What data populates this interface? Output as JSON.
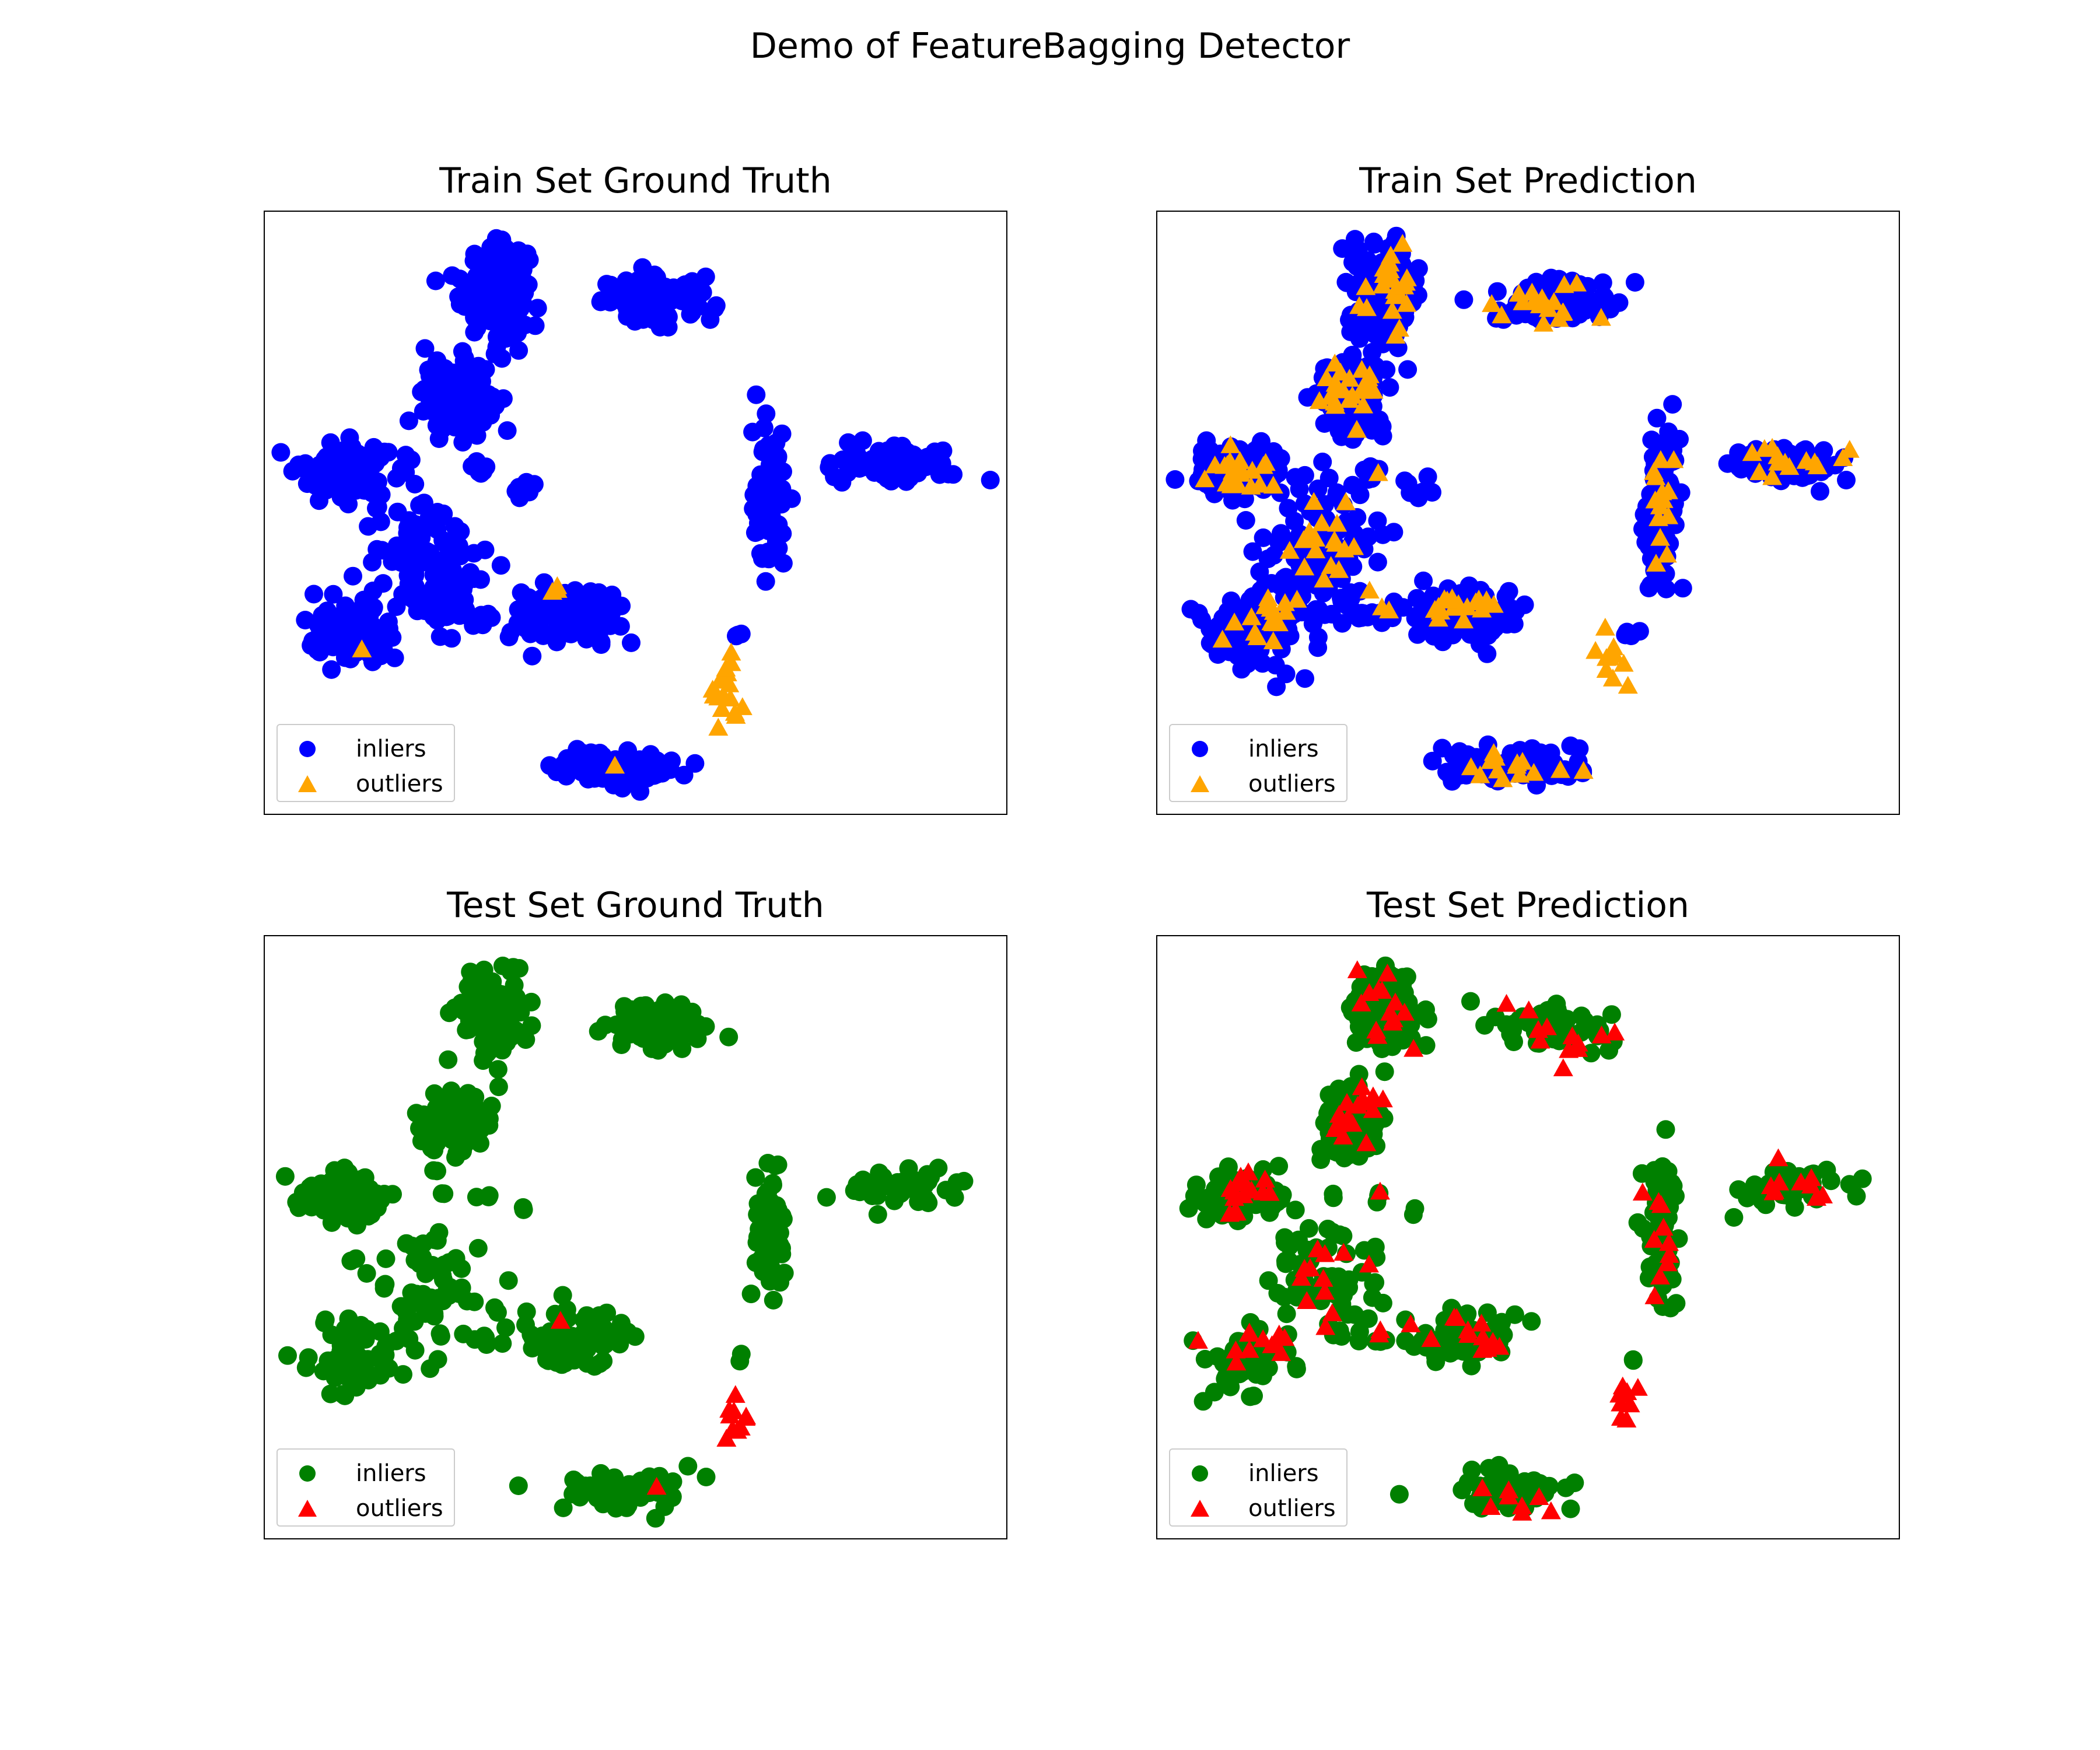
{
  "figure": {
    "title": "Demo of FeatureBagging Detector"
  },
  "legend_labels": {
    "inliers": "inliers",
    "outliers": "outliers"
  },
  "colors": {
    "train_inlier": "#0000ff",
    "train_outlier": "#ffa500",
    "test_inlier": "#008000",
    "test_outlier": "#ff0000"
  },
  "chart_data": [
    {
      "type": "scatter",
      "title": "Train Set Ground Truth",
      "xlim": [
        0,
        100
      ],
      "ylim": [
        0,
        100
      ],
      "grid": false,
      "legend_position": "lower-left",
      "series": [
        {
          "name": "inliers",
          "marker": "circle",
          "color": "#0000ff",
          "clusters": [
            {
              "cx": 31,
              "cy": 87,
              "sx": 3,
              "sy": 5,
              "n": 170
            },
            {
              "cx": 53,
              "cy": 85,
              "sx": 5,
              "sy": 2.5,
              "n": 110
            },
            {
              "cx": 26,
              "cy": 69,
              "sx": 3,
              "sy": 4,
              "n": 150
            },
            {
              "cx": 11,
              "cy": 57,
              "sx": 4,
              "sy": 3,
              "n": 130
            },
            {
              "cx": 22,
              "cy": 42,
              "sx": 5,
              "sy": 8,
              "n": 120
            },
            {
              "cx": 12,
              "cy": 30,
              "sx": 4,
              "sy": 4,
              "n": 80
            },
            {
              "cx": 41,
              "cy": 33,
              "sx": 5,
              "sy": 3,
              "n": 110
            },
            {
              "cx": 68,
              "cy": 52,
              "sx": 1.5,
              "sy": 8,
              "n": 90
            },
            {
              "cx": 85,
              "cy": 58,
              "sx": 5,
              "sy": 2,
              "n": 80
            },
            {
              "cx": 47,
              "cy": 8,
              "sx": 6,
              "sy": 2,
              "n": 100
            },
            {
              "cx": 29,
              "cy": 57,
              "sx": 1,
              "sy": 1,
              "n": 8
            },
            {
              "cx": 35,
              "cy": 54,
              "sx": 1,
              "sy": 1,
              "n": 8
            },
            {
              "cx": 28,
              "cy": 33,
              "sx": 2,
              "sy": 1,
              "n": 10
            },
            {
              "cx": 64,
              "cy": 30,
              "sx": 0.5,
              "sy": 0.5,
              "n": 4
            }
          ]
        },
        {
          "name": "outliers",
          "marker": "triangle",
          "color": "#ffa500",
          "clusters": [
            {
              "cx": 62,
              "cy": 21,
              "sx": 1.5,
              "sy": 4,
              "n": 18
            },
            {
              "cx": 39,
              "cy": 37,
              "sx": 2,
              "sy": 0.5,
              "n": 3
            },
            {
              "cx": 47,
              "cy": 9,
              "sx": 0.5,
              "sy": 0.5,
              "n": 1
            },
            {
              "cx": 13,
              "cy": 27,
              "sx": 0.5,
              "sy": 0.5,
              "n": 1
            }
          ]
        }
      ]
    },
    {
      "type": "scatter",
      "title": "Train Set Prediction",
      "xlim": [
        0,
        100
      ],
      "ylim": [
        0,
        100
      ],
      "grid": false,
      "legend_position": "lower-left",
      "series": [
        {
          "name": "inliers",
          "marker": "circle",
          "color": "#0000ff",
          "clusters": [
            {
              "cx": 31,
              "cy": 87,
              "sx": 3,
              "sy": 5,
              "n": 170
            },
            {
              "cx": 53,
              "cy": 85,
              "sx": 5,
              "sy": 2.5,
              "n": 110
            },
            {
              "cx": 26,
              "cy": 69,
              "sx": 3,
              "sy": 4,
              "n": 150
            },
            {
              "cx": 11,
              "cy": 57,
              "sx": 4,
              "sy": 3,
              "n": 130
            },
            {
              "cx": 22,
              "cy": 42,
              "sx": 5,
              "sy": 8,
              "n": 120
            },
            {
              "cx": 12,
              "cy": 30,
              "sx": 4,
              "sy": 4,
              "n": 80
            },
            {
              "cx": 41,
              "cy": 33,
              "sx": 5,
              "sy": 3,
              "n": 110
            },
            {
              "cx": 68,
              "cy": 52,
              "sx": 1.5,
              "sy": 8,
              "n": 90
            },
            {
              "cx": 85,
              "cy": 58,
              "sx": 5,
              "sy": 2,
              "n": 80
            },
            {
              "cx": 47,
              "cy": 8,
              "sx": 6,
              "sy": 2,
              "n": 100
            },
            {
              "cx": 29,
              "cy": 57,
              "sx": 1,
              "sy": 1,
              "n": 8
            },
            {
              "cx": 35,
              "cy": 54,
              "sx": 1,
              "sy": 1,
              "n": 8
            },
            {
              "cx": 28,
              "cy": 33,
              "sx": 2,
              "sy": 1,
              "n": 10
            },
            {
              "cx": 64,
              "cy": 30,
              "sx": 0.5,
              "sy": 0.5,
              "n": 4
            }
          ]
        },
        {
          "name": "outliers",
          "marker": "triangle",
          "color": "#ffa500",
          "clusters": [
            {
              "cx": 31,
              "cy": 88,
              "sx": 3,
              "sy": 5,
              "n": 22
            },
            {
              "cx": 53,
              "cy": 84,
              "sx": 5,
              "sy": 3,
              "n": 18
            },
            {
              "cx": 26,
              "cy": 70,
              "sx": 3,
              "sy": 3.5,
              "n": 22
            },
            {
              "cx": 11,
              "cy": 57,
              "sx": 3.5,
              "sy": 3,
              "n": 22
            },
            {
              "cx": 22,
              "cy": 43,
              "sx": 4,
              "sy": 6,
              "n": 18
            },
            {
              "cx": 14,
              "cy": 32,
              "sx": 3.5,
              "sy": 3,
              "n": 16
            },
            {
              "cx": 41,
              "cy": 34,
              "sx": 4.5,
              "sy": 2.5,
              "n": 16
            },
            {
              "cx": 68,
              "cy": 50,
              "sx": 1.5,
              "sy": 7,
              "n": 14
            },
            {
              "cx": 85,
              "cy": 59,
              "sx": 5,
              "sy": 2,
              "n": 14
            },
            {
              "cx": 62,
              "cy": 24,
              "sx": 1.5,
              "sy": 5,
              "n": 10
            },
            {
              "cx": 47,
              "cy": 8,
              "sx": 5,
              "sy": 2,
              "n": 14
            },
            {
              "cx": 30,
              "cy": 57,
              "sx": 0.5,
              "sy": 0.5,
              "n": 1
            },
            {
              "cx": 30,
              "cy": 34,
              "sx": 1.5,
              "sy": 0.5,
              "n": 2
            }
          ]
        }
      ]
    },
    {
      "type": "scatter",
      "title": "Test Set Ground Truth",
      "xlim": [
        0,
        100
      ],
      "ylim": [
        0,
        100
      ],
      "grid": false,
      "legend_position": "lower-left",
      "series": [
        {
          "name": "inliers",
          "marker": "circle",
          "color": "#008000",
          "clusters": [
            {
              "cx": 31,
              "cy": 87,
              "sx": 3,
              "sy": 5,
              "n": 110
            },
            {
              "cx": 53,
              "cy": 85,
              "sx": 5,
              "sy": 2.5,
              "n": 70
            },
            {
              "cx": 26,
              "cy": 69,
              "sx": 3,
              "sy": 4,
              "n": 90
            },
            {
              "cx": 11,
              "cy": 57,
              "sx": 4,
              "sy": 3,
              "n": 85
            },
            {
              "cx": 22,
              "cy": 42,
              "sx": 5,
              "sy": 8,
              "n": 70
            },
            {
              "cx": 12,
              "cy": 30,
              "sx": 4,
              "sy": 4,
              "n": 50
            },
            {
              "cx": 41,
              "cy": 33,
              "sx": 5,
              "sy": 3,
              "n": 70
            },
            {
              "cx": 68,
              "cy": 52,
              "sx": 1.5,
              "sy": 8,
              "n": 55
            },
            {
              "cx": 85,
              "cy": 58,
              "sx": 5,
              "sy": 2,
              "n": 50
            },
            {
              "cx": 47,
              "cy": 8,
              "sx": 6,
              "sy": 2,
              "n": 60
            },
            {
              "cx": 24,
              "cy": 57,
              "sx": 0.5,
              "sy": 0.5,
              "n": 2
            },
            {
              "cx": 30,
              "cy": 57,
              "sx": 0.5,
              "sy": 0.5,
              "n": 2
            },
            {
              "cx": 35,
              "cy": 54,
              "sx": 0.5,
              "sy": 0.5,
              "n": 2
            },
            {
              "cx": 30,
              "cy": 33,
              "sx": 2,
              "sy": 0.5,
              "n": 5
            },
            {
              "cx": 64,
              "cy": 30,
              "sx": 0.5,
              "sy": 0.5,
              "n": 2
            }
          ]
        },
        {
          "name": "outliers",
          "marker": "triangle",
          "color": "#ff0000",
          "clusters": [
            {
              "cx": 63,
              "cy": 21,
              "sx": 1.5,
              "sy": 4,
              "n": 10
            },
            {
              "cx": 40,
              "cy": 36,
              "sx": 0.5,
              "sy": 0.5,
              "n": 1
            },
            {
              "cx": 53,
              "cy": 8,
              "sx": 0.5,
              "sy": 0.5,
              "n": 1
            }
          ]
        }
      ]
    },
    {
      "type": "scatter",
      "title": "Test Set Prediction",
      "xlim": [
        0,
        100
      ],
      "ylim": [
        0,
        100
      ],
      "grid": false,
      "legend_position": "lower-left",
      "series": [
        {
          "name": "inliers",
          "marker": "circle",
          "color": "#008000",
          "clusters": [
            {
              "cx": 31,
              "cy": 87,
              "sx": 3,
              "sy": 5,
              "n": 110
            },
            {
              "cx": 53,
              "cy": 85,
              "sx": 5,
              "sy": 2.5,
              "n": 70
            },
            {
              "cx": 26,
              "cy": 69,
              "sx": 3,
              "sy": 4,
              "n": 90
            },
            {
              "cx": 11,
              "cy": 57,
              "sx": 4,
              "sy": 3,
              "n": 85
            },
            {
              "cx": 22,
              "cy": 42,
              "sx": 5,
              "sy": 8,
              "n": 70
            },
            {
              "cx": 12,
              "cy": 30,
              "sx": 4,
              "sy": 4,
              "n": 50
            },
            {
              "cx": 41,
              "cy": 33,
              "sx": 5,
              "sy": 3,
              "n": 70
            },
            {
              "cx": 68,
              "cy": 52,
              "sx": 1.5,
              "sy": 8,
              "n": 55
            },
            {
              "cx": 85,
              "cy": 58,
              "sx": 5,
              "sy": 2,
              "n": 50
            },
            {
              "cx": 47,
              "cy": 8,
              "sx": 6,
              "sy": 2,
              "n": 60
            },
            {
              "cx": 24,
              "cy": 57,
              "sx": 0.5,
              "sy": 0.5,
              "n": 2
            },
            {
              "cx": 30,
              "cy": 57,
              "sx": 0.5,
              "sy": 0.5,
              "n": 2
            },
            {
              "cx": 35,
              "cy": 54,
              "sx": 0.5,
              "sy": 0.5,
              "n": 2
            },
            {
              "cx": 30,
              "cy": 33,
              "sx": 2,
              "sy": 0.5,
              "n": 5
            },
            {
              "cx": 64,
              "cy": 30,
              "sx": 0.5,
              "sy": 0.5,
              "n": 2
            }
          ]
        },
        {
          "name": "outliers",
          "marker": "triangle",
          "color": "#ff0000",
          "clusters": [
            {
              "cx": 31,
              "cy": 88,
              "sx": 3,
              "sy": 5,
              "n": 14
            },
            {
              "cx": 53,
              "cy": 84,
              "sx": 5,
              "sy": 3,
              "n": 12
            },
            {
              "cx": 26,
              "cy": 70,
              "sx": 3,
              "sy": 3.5,
              "n": 16
            },
            {
              "cx": 11,
              "cy": 57,
              "sx": 3.5,
              "sy": 3,
              "n": 16
            },
            {
              "cx": 22,
              "cy": 43,
              "sx": 4,
              "sy": 6,
              "n": 12
            },
            {
              "cx": 14,
              "cy": 32,
              "sx": 3.5,
              "sy": 3,
              "n": 12
            },
            {
              "cx": 41,
              "cy": 34,
              "sx": 4.5,
              "sy": 2.5,
              "n": 12
            },
            {
              "cx": 68,
              "cy": 50,
              "sx": 1.5,
              "sy": 7,
              "n": 10
            },
            {
              "cx": 85,
              "cy": 59,
              "sx": 5,
              "sy": 2,
              "n": 10
            },
            {
              "cx": 63,
              "cy": 23,
              "sx": 1.5,
              "sy": 5,
              "n": 8
            },
            {
              "cx": 47,
              "cy": 7,
              "sx": 4,
              "sy": 1.5,
              "n": 8
            },
            {
              "cx": 30,
              "cy": 57,
              "sx": 0.5,
              "sy": 0.5,
              "n": 1
            },
            {
              "cx": 30,
              "cy": 34,
              "sx": 1.5,
              "sy": 0.5,
              "n": 2
            }
          ]
        }
      ]
    }
  ]
}
